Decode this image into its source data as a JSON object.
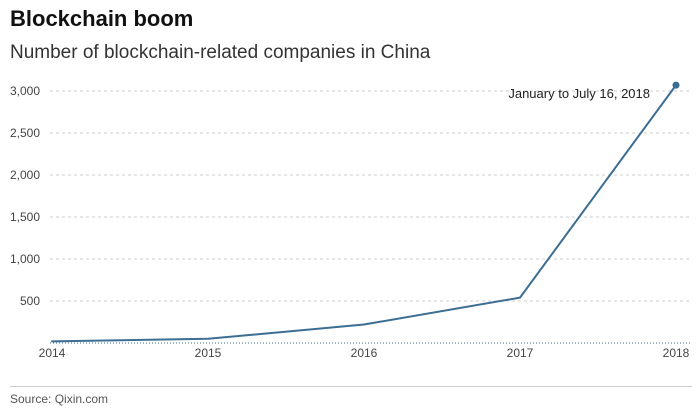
{
  "header": {
    "title": "Blockchain boom",
    "subtitle": "Number of blockchain-related companies in China"
  },
  "footer": {
    "source": "Source: Qixin.com"
  },
  "colors": {
    "line": "#3b6e92",
    "grid": "#cfcfcf",
    "baseline": "#3b6e92",
    "tick_text": "#444444"
  },
  "chart_data": {
    "type": "line",
    "title": "Blockchain boom",
    "subtitle": "Number of blockchain-related companies in China",
    "xlabel": "",
    "ylabel": "",
    "x": [
      "2014",
      "2015",
      "2016",
      "2017",
      "2018"
    ],
    "x_tick_labels": [
      "2014",
      "2015",
      "2016",
      "2017",
      "2018"
    ],
    "y_ticks": [
      500,
      1000,
      1500,
      2000,
      2500,
      3000
    ],
    "y_tick_labels": [
      "500",
      "1,000",
      "1,500",
      "2,000",
      "2,500",
      "3,000"
    ],
    "ylim": [
      0,
      3000
    ],
    "grid": true,
    "series": [
      {
        "values": [
          20,
          50,
          220,
          540,
          3070
        ],
        "color": "#3b6e92"
      }
    ],
    "annotations": [
      {
        "text": "January to July 16, 2018",
        "x": "2018",
        "y": 3070
      }
    ]
  }
}
